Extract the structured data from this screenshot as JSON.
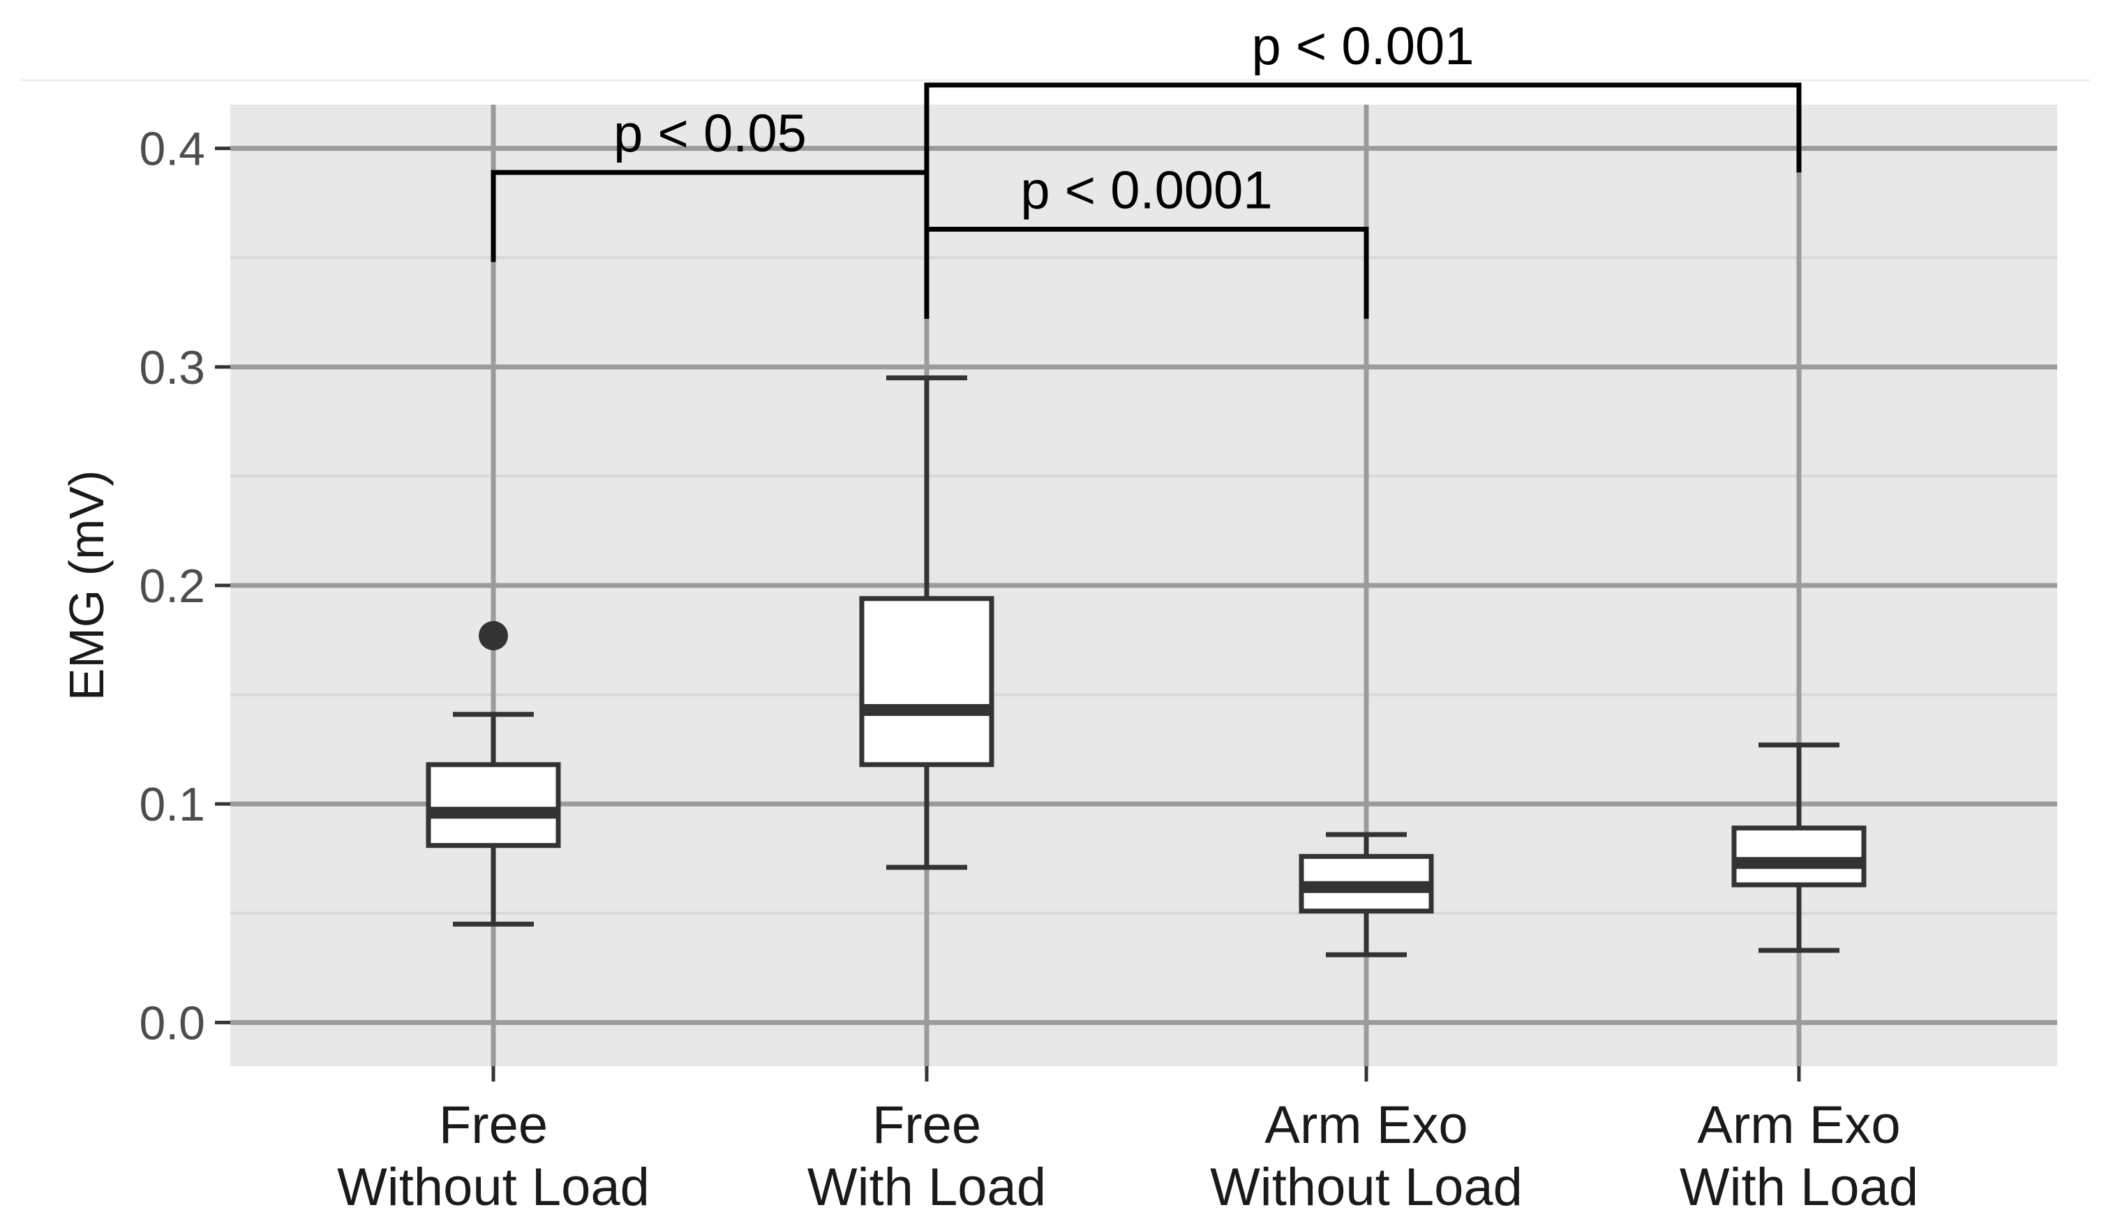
{
  "chart_data": {
    "type": "boxplot",
    "xlabel": "",
    "ylabel": "EMG (mV)",
    "ylim": [
      -0.02,
      0.42
    ],
    "yticks": [
      0.0,
      0.1,
      0.2,
      0.3,
      0.4
    ],
    "ytick_labels": [
      "0.0",
      "0.1",
      "0.2",
      "0.3",
      "0.4"
    ],
    "grid": true,
    "categories": [
      {
        "line1": "Free",
        "line2": "Without Load"
      },
      {
        "line1": "Free",
        "line2": "With Load"
      },
      {
        "line1": "Arm Exo",
        "line2": "Without Load"
      },
      {
        "line1": "Arm Exo",
        "line2": "With Load"
      }
    ],
    "boxes": [
      {
        "whisker_low": 0.045,
        "q1": 0.081,
        "median": 0.096,
        "q3": 0.118,
        "whisker_high": 0.141,
        "outliers": [
          0.177
        ]
      },
      {
        "whisker_low": 0.071,
        "q1": 0.118,
        "median": 0.143,
        "q3": 0.194,
        "whisker_high": 0.295,
        "outliers": []
      },
      {
        "whisker_low": 0.031,
        "q1": 0.051,
        "median": 0.062,
        "q3": 0.076,
        "whisker_high": 0.086,
        "outliers": []
      },
      {
        "whisker_low": 0.033,
        "q1": 0.063,
        "median": 0.073,
        "q3": 0.089,
        "whisker_high": 0.127,
        "outliers": []
      }
    ],
    "significance": [
      {
        "from": 0,
        "to": 1,
        "label": "p < 0.05",
        "bar_y": 0.389,
        "drop_from": 0.348,
        "drop_to": 0.322
      },
      {
        "from": 1,
        "to": 2,
        "label": "p < 0.0001",
        "bar_y": 0.363,
        "drop_from": 0.322,
        "drop_to": 0.322
      },
      {
        "from": 1,
        "to": 3,
        "label": "p < 0.001",
        "bar_y": 0.429,
        "drop_from": 0.322,
        "drop_to": 0.389
      }
    ]
  },
  "colors": {
    "panel": "#e8e8e8",
    "grid_major": "#9b9b9b",
    "grid_minor": "#d8d8d8",
    "box_line": "#333333",
    "box_fill": "#ffffff",
    "sig_line": "#000000"
  }
}
